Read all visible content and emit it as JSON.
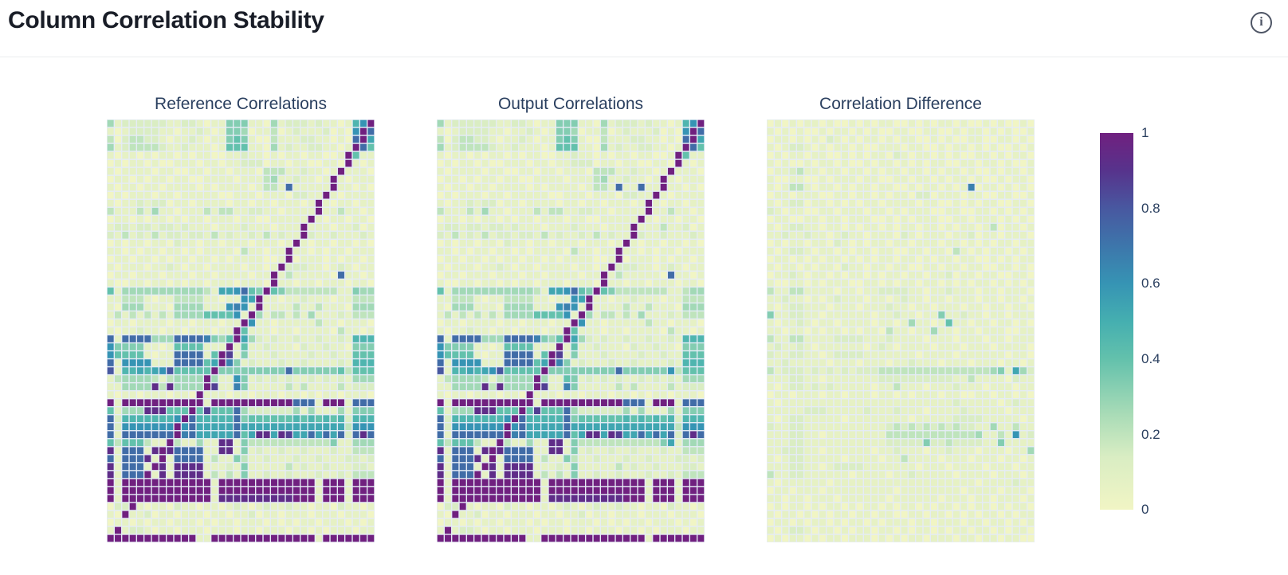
{
  "header": {
    "title": "Column Correlation Stability",
    "info_glyph": "i"
  },
  "colors": {
    "page_bg": "#ffffff",
    "header_divider": "#ebedef",
    "title_text": "#191d27",
    "subplot_title_text": "#2a3f5f",
    "plot_background": "#e5ecf6",
    "info_icon": "#4e5565"
  },
  "chart_data": {
    "type": "heatmap",
    "grid": {
      "cols": 36,
      "rows": 53
    },
    "value_encoding": "each row string is 36 hex digits; cell value = parseInt(digit,16)/15, range 0..1",
    "axes": {
      "x_ticks_visible": false,
      "y_ticks_visible": false
    },
    "colorscale": [
      [
        0.0,
        "#f1f5c4"
      ],
      [
        0.14,
        "#d9edc3"
      ],
      [
        0.25,
        "#aadcb7"
      ],
      [
        0.4,
        "#63c1ac"
      ],
      [
        0.5,
        "#45afb0"
      ],
      [
        0.6,
        "#3694b4"
      ],
      [
        0.7,
        "#3d76ab"
      ],
      [
        0.8,
        "#4858a0"
      ],
      [
        0.9,
        "#57338c"
      ],
      [
        1.0,
        "#70207f"
      ]
    ],
    "colorbar": {
      "min": 0,
      "max": 1,
      "tick_values": [
        1,
        0.8,
        0.6,
        0.4,
        0.2,
        0
      ],
      "ticks": [
        "1",
        "0.8",
        "0.6",
        "0.4",
        "0.2",
        "0"
      ]
    },
    "panels": [
      {
        "title": "Reference Correlations",
        "rows": [
          "41222222112210115551104122212110179f",
          "1012222110112101554011301211120109fb",
          "302332210112101156510031112211010bf8",
          "412333321121110166611041211221101fb6",
          "10110101101011001121101011011001f611",
          "01011010011101101122201101100110f101",
          "1011110110011011011103331121101f1110",
          "011010110110011110111341121101f10111",
          "101101101111010111101331b11111f11010",
          "01011101101111100111011102211f101111",
          "1011212201101111011011011101f1011011",
          "3111314110111313311221101111f1131101",
          "011010110101101110110011111f10110110",
          "12212212212111011121110111f111011201",
          "21312131221221312112131211f211211121",
          "0101101102110110111011101f1011011010",
          "110101101101011110311011f11010110111",
          "011011010110110101111001f01110101101",
          "10111011210110111101101f222110121011",
          "0110111011101101111011f13111110b1101",
          "1001101101011011101110f1101101110110",
          "614444444444431889b65f65333333311544",
          "11333101133331101198f110112111011333",
          "10444111044441119a91f111131131110444",
          "1313131314444666691f4133131411121333",
          "011011110110111011f91101111131101110",
          "10112110110111011f611101101111031101",
          "b1bbbb444bbbba546f842121121121121777",
          "9555511016666111f1611211102112110555",
          "966661011bbbb16fd1511121111211211666",
          "b19999111bbbb68fa5121112112111121777",
          "c1778789c66666f555555555b55555563666",
          "1344443134444f4119512121211212121444",
          "114444e3e4444fd11a511111313111131222",
          "101101110110f11101101110110101101110",
          "f1fffffffffff1fffffffffffbbb1fff1bbb",
          "61444eee666f6d666b422222241411141555",
          "b277777779fb77777b566666676767672777",
          "b29999999f9b88888b888888888888883999",
          "b1bbbbbbbfab88888b68ee8ed88b8b8b2beb",
          "63666311f311411ee1533333333333511444",
          "e1bbb1efebbbb11ee1512112112111211333",
          "b1bbbe1f1bbbb13115311211121121112212",
          "e1bbb1fe1eeee11121511111312112111221",
          "e1bbbf1e1eeee13131511211211121121333",
          "f1ffffffffffff1fffffffffffff1fff1fff",
          "f1ffffffffffff1fffffffffffff1fff1fff",
          "f1ffffffffffff1eeeeeeeeeefff1fff1fff",
          "022f10110211011012101211211011021101",
          "10f112011011101101120110111011101110",
          "011010110111010110111010101101110101",
          "1f1221011011101110110111011010111011",
          "ffffffffffff11ffffffffffffff1fffffff"
        ]
      },
      {
        "title": "Output Correlations",
        "rows": [
          "41222222112210115551104122212110179f",
          "1012222110112101554011301211120109fb",
          "302332210112101156510031112211010bf8",
          "412333321121110166611041211221101fb6",
          "10110101101011001121101011011001f611",
          "01011010011101101122201101100110f101",
          "1011110110011011011103331121101f1110",
          "011010110110011110111341121101f10111",
          "101101101111010111101331b11b11f11010",
          "01011101101111100111011102211f101111",
          "1011212201101111011011011101f1011011",
          "3111314110111313311221101111f1131101",
          "011010110101101110110011111f10110110",
          "12212212212111011121110111f111311201",
          "21312131221221312112131211f211211121",
          "0101101102110110111011101f1011011010",
          "110101101101011110311011f11010110111",
          "011011010110110101111001f01110101101",
          "10111011210110111101101f222110121011",
          "0110111011101101111011f13111110b1101",
          "1001101101011011101110f1101101110110",
          "614444444444431889b65f65333333311344",
          "11333101133331101198f110112111011333",
          "10444111044441119a91f111131131110444",
          "1313131314444666691f4133131411121333",
          "011011110110111011f91101111131101110",
          "10112110110111011f611101101111031101",
          "b1bbbb444bbbba546f842121121121121777",
          "9555511016666111f1611211102112110555",
          "966661011bbbb16fd1511121111211211666",
          "b19999111bbbb68fa5121112112111121777",
          "c1778789c66666f555555555b55555593666",
          "1344443134444f4116512121211212121444",
          "114444e3e4444fd11a511111313111131222",
          "101101110110f11101101110110101101110",
          "f1fffffffffff1fffffffffffbbb1fff1bbb",
          "61444eee666f6d666b422222241411141555",
          "b277777779fb77777b566666676767672777",
          "b29999999f9b88888b888888888888883999",
          "b1bbbbbbbfab88888b68ee8ed88b8b8b2beb",
          "63666311f311411ee1533333333333581444",
          "e1bbb1efebbbb11ee1512112112111211333",
          "b1bbbe1f1bbbb13115311211121121112212",
          "e1bbb1fe1eeee11121511111312112111221",
          "e1bbbf1e1eeee13131511211211121121333",
          "f1ffffffffffff1fffffffffffff1fff1fff",
          "f1ffffffffffff1fffffffffffff1fff1fff",
          "f1ffffffffffff1eeeeeeeeeefff1fff1fff",
          "022f10110211011012101211211011021101",
          "10f112011011101101120110111011101110",
          "011010110111010110111010101101110101",
          "1f1221011011101110110111011010111011",
          "ffffffffffff11ffffffffffffff1fffffff"
        ]
      },
      {
        "title": "Correlation Difference",
        "rows": [
          "010101101001010110010101101001010010",
          "101010010110101001100110010110101001",
          "011010102101011010110010100110011010",
          "101221010110100111011001011010100101",
          "010110110010101102101101010011010110",
          "101001011010010110101011001101101001",
          "011231101101101011011010110100101101",
          "100110010111011001101101011010010110",
          "101331011010110110010110101a01101010",
          "011011100110110101102201110110011001",
          "101220110101011011110110010101100110",
          "210110011011101101011100110011010101",
          "011001101101110010101110011011101010",
          "101221101101011010110110101101301101",
          "112112110121101110210111011201101110",
          "010110110210101101101110110101011011",
          "101221011010110110011011031010110101",
          "011010101101010110110101101100101011",
          "101101011021101101100110110110011010",
          "011210110101101011011011201101100110",
          "100110101110011010110110101011010101",
          "311331111011011222211011211101101110",
          "112110101211101101211011011101101101",
          "101221110111011121101101110110110110",
          "511221101111110112110115112110110111",
          "101121011011110110141101611011011010",
          "110110101101011031101141101101110011",
          "311331111222211121111011101110110111",
          "121121011111101210111101110111011110",
          "211221101222211111110111101111110110",
          "112111110111011101121110111011101101",
          "312221212121222333333333333333451842",
          "111221101111111222222222211311110211",
          "101221212111110113111011121110111011",
          "011011101101110110101110110011011010",
          "101111111111111111111111121111101211",
          "111112221111121112111011112111110111",
          "101221111101111111101111122221111101",
          "211221111111111123232323232211411311",
          "111221101111111133333333333341131912",
          "111221111111111122222522322221151111",
          "112221101111110112111011211101110114",
          "101221111101111011311110111011101101",
          "111221101222211111110111011110111011",
          "311221111110111101121111101111011101",
          "101111110111111111111111111101111211",
          "011011101111111110111111110111101110",
          "110110111011111101111110111011011101",
          "010110101101011010110101101011010110",
          "101101010110110110011011010101101011",
          "011010110101101011101101110110110101",
          "101221011010110110101101011011010110",
          "010110101101110101011011101101101100"
        ]
      }
    ]
  }
}
